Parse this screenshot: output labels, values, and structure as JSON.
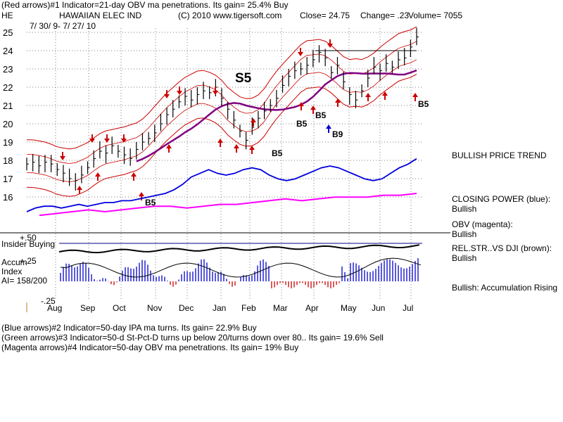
{
  "header": {
    "line1": "(Red arrows)#1 Indicator=21-day OBV ma penetrations. Its gain= 25.4% Buy",
    "ticker": "HE",
    "company": "HAWAIIAN ELEC IND",
    "copyright": "(C) 2010 www.tigersoft.com",
    "close": "Close=  24.75",
    "change": "Change= .23",
    "volume": "Volume= 7055",
    "date_range": "7/ 30/ 9- 7/ 27/ 10"
  },
  "chart_data": {
    "type": "line",
    "title": "HAWAIIAN ELEC IND",
    "y_axis": {
      "ticks": [
        "25",
        "24",
        "23",
        "22",
        "21",
        "20",
        "19",
        "18",
        "17",
        "16"
      ],
      "ylim": [
        15,
        25.4
      ]
    },
    "x_labels": [
      "Aug",
      "Sep",
      "Oct",
      "Nov",
      "Dec",
      "Jan",
      "Feb",
      "Mar",
      "Apr",
      "May",
      "Jun",
      "Jul"
    ],
    "price_close": [
      17.8,
      17.9,
      17.7,
      17.9,
      17.8,
      17.5,
      17.3,
      17.0,
      16.9,
      17.2,
      17.6,
      18.1,
      18.5,
      18.4,
      18.8,
      18.5,
      18.3,
      18.1,
      18.6,
      19.0,
      19.2,
      19.5,
      20.0,
      20.5,
      20.8,
      21.2,
      21.5,
      21.3,
      21.6,
      21.8,
      21.7,
      22.0,
      21.4,
      20.8,
      20.2,
      19.6,
      19.1,
      19.8,
      20.3,
      20.7,
      21.0,
      21.4,
      22.1,
      22.6,
      22.9,
      23.0,
      23.2,
      23.5,
      23.9,
      23.6,
      22.8,
      23.2,
      22.3,
      21.6,
      21.3,
      21.8,
      22.5,
      23.1,
      22.9,
      23.3,
      23.1,
      23.5,
      23.6,
      24.2,
      24.75
    ],
    "indicators": [
      {
        "name": "Closing Power",
        "color": "blue",
        "values": [
          15.5,
          15.7,
          15.8,
          15.8,
          15.7,
          15.8,
          15.9,
          15.8,
          15.9,
          16.0,
          16.0,
          16.1,
          16.1,
          16.2,
          16.3,
          16.4,
          16.5,
          16.7,
          17.0,
          17.4,
          17.6,
          17.8,
          17.6,
          17.5,
          17.6,
          17.8,
          17.9,
          17.8,
          17.5,
          17.3,
          17.2,
          17.3,
          17.5,
          17.7,
          17.9,
          18.0,
          17.9,
          17.7,
          17.5,
          17.3,
          17.2,
          17.3,
          17.6,
          17.9,
          18.1,
          18.4
        ]
      },
      {
        "name": "OBV",
        "color": "magenta",
        "values": [
          14.8,
          14.9,
          15.0,
          15.1,
          15.0,
          15.1,
          15.2,
          15.3,
          15.3,
          15.2,
          15.3,
          15.4,
          15.4,
          15.5,
          15.6,
          15.7,
          15.6,
          15.7,
          15.8,
          15.8,
          15.8,
          15.9,
          15.9,
          16.0
        ]
      }
    ],
    "buy_sell_labels": [
      "B5",
      "B5",
      "B5",
      "B5",
      "B9",
      "B5"
    ],
    "signal_label": "S5",
    "lower_panel": {
      "label_insider": "Insider Buying",
      "level_50": "+.50",
      "level_25": "+.25",
      "level_neg25": "-.25",
      "accum_label_1": "Accum",
      "accum_label_2": "Index",
      "ai_value": "AI= 158/200"
    }
  },
  "right_notes": {
    "trend": "BULLISH PRICE TREND",
    "cp_label": "CLOSING POWER (blue):",
    "cp_value": "Bullish",
    "obv_label": "OBV (magenta):",
    "obv_value": "Bullish",
    "rs_label": "REL.STR..VS DJI (brown):",
    "rs_value": "Bullish",
    "accum": "Bullish: Accumulation Rising"
  },
  "footer": {
    "line1": "(Blue arrows)#2 Indicator=50-day IPA ma turns. Its gain= 22.9% Buy",
    "line2": "(Green arrows)#3 Indicator=50-d St-Pct-D turns up below 20/turns down over 80.. Its gain= 19.6% Sell",
    "line3": "(Magenta arrows)#4 Indicator=50-day OBV ma penetrations. Its gain= 19% Buy"
  },
  "colors": {
    "price": "#000000",
    "bands": "#cc0000",
    "ma": "#800080",
    "cp": "#0000dd",
    "obv": "#ff00ff",
    "accum": "#0000cc",
    "insider": "#000080"
  }
}
